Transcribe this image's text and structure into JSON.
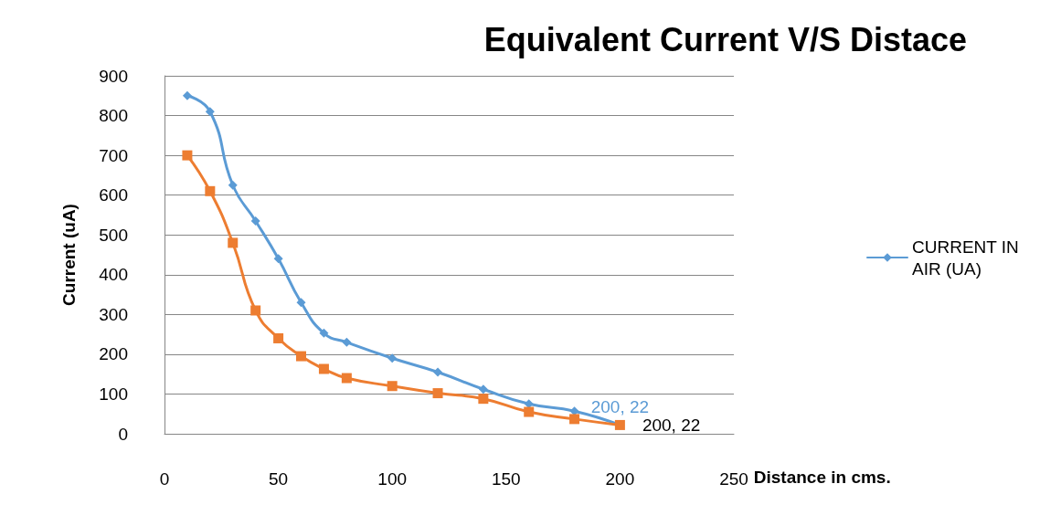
{
  "chart_data": {
    "type": "line",
    "title": "Equivalent Current V/S Distace",
    "xlabel": "Distance in cms.",
    "ylabel": "Current (uA)",
    "x": [
      10,
      20,
      30,
      40,
      50,
      60,
      70,
      80,
      100,
      120,
      140,
      160,
      180,
      200
    ],
    "series": [
      {
        "name": "CURRENT IN AIR (UA)",
        "color": "#5b9bd5",
        "marker": "diamond",
        "values": [
          850,
          810,
          625,
          535,
          440,
          330,
          253,
          230,
          190,
          155,
          112,
          75,
          57,
          22
        ],
        "value_labels": [
          null,
          null,
          null,
          null,
          null,
          null,
          null,
          null,
          null,
          null,
          null,
          null,
          null,
          "200, 22"
        ]
      },
      {
        "color": "#ed7d31",
        "marker": "square",
        "values": [
          700,
          610,
          480,
          310,
          240,
          195,
          163,
          140,
          120,
          102,
          88,
          55,
          37,
          22
        ],
        "value_labels": [
          null,
          null,
          null,
          null,
          null,
          null,
          null,
          null,
          null,
          null,
          null,
          null,
          null,
          "200, 22"
        ]
      }
    ],
    "xlim": [
      0,
      250
    ],
    "xticks": [
      0,
      50,
      100,
      150,
      200,
      250
    ],
    "ylim": [
      0,
      900
    ],
    "yticks": [
      0,
      100,
      200,
      300,
      400,
      500,
      600,
      700,
      800,
      900
    ],
    "grid": "y",
    "legend": "right",
    "line_style": "solid"
  }
}
